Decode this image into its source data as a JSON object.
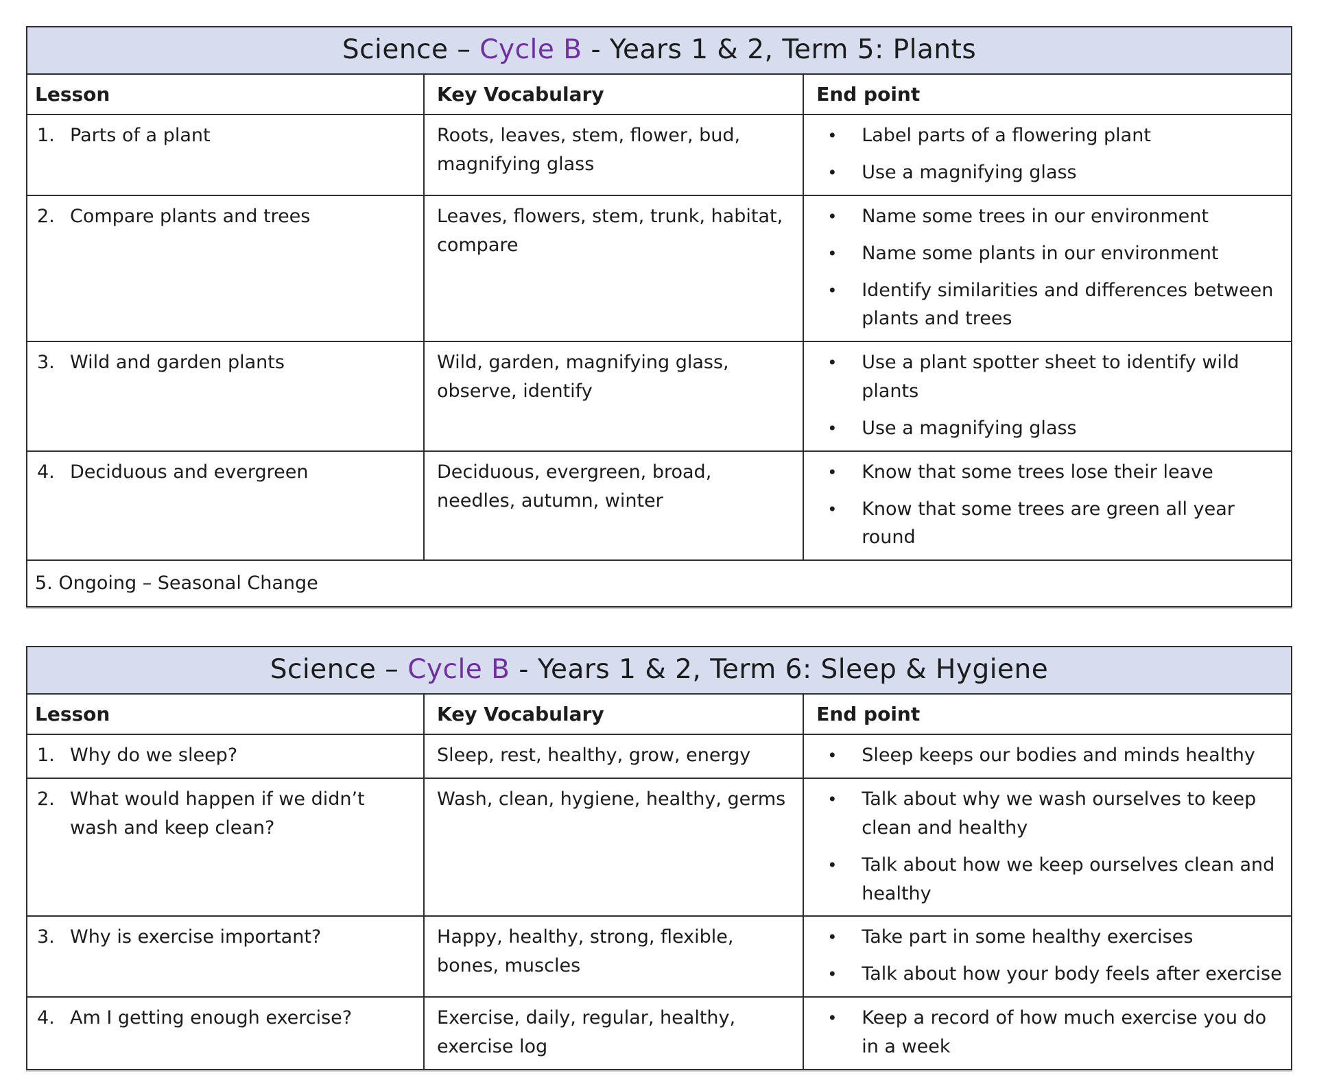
{
  "theme": {
    "title_bar_background": "#d5ddee",
    "highlight_purple": "#7030a0",
    "border_color": "#2e2e2e",
    "text_color": "#1c1c1c"
  },
  "tables": [
    {
      "title_prefix": "Science – ",
      "title_highlight": "Cycle B",
      "title_suffix": " - Years 1 & 2, Term 5: Plants",
      "columns": {
        "lesson": "Lesson",
        "vocab": "Key Vocabulary",
        "endpoint": "End point"
      },
      "rows": [
        {
          "num": "1.",
          "lesson": "Parts of a plant",
          "vocab": "Roots, leaves, stem, flower, bud, magnifying glass",
          "endpoints": [
            "Label parts of a flowering plant",
            "Use a magnifying glass"
          ]
        },
        {
          "num": "2.",
          "lesson": "Compare plants and trees",
          "vocab": "Leaves, flowers, stem, trunk, habitat, compare",
          "endpoints": [
            "Name some trees in our environment",
            "Name some plants in our environment",
            "Identify similarities and differences between plants and trees"
          ]
        },
        {
          "num": "3.",
          "lesson": "Wild and garden plants",
          "vocab": "Wild, garden, magnifying glass, observe, identify",
          "endpoints": [
            "Use a plant spotter sheet to identify wild plants",
            "Use a magnifying glass"
          ]
        },
        {
          "num": "4.",
          "lesson": "Deciduous and evergreen",
          "vocab": "Deciduous, evergreen, broad, needles, autumn, winter",
          "endpoints": [
            "Know that some trees lose their leave",
            "Know that some trees are green all year round"
          ]
        }
      ],
      "footer": "5. Ongoing – Seasonal Change"
    },
    {
      "title_prefix": "Science – ",
      "title_highlight": "Cycle B",
      "title_suffix": " - Years 1 & 2, Term 6: Sleep & Hygiene",
      "columns": {
        "lesson": "Lesson",
        "vocab": "Key Vocabulary",
        "endpoint": "End point"
      },
      "rows": [
        {
          "num": "1.",
          "lesson": "Why do we sleep?",
          "vocab": "Sleep, rest, healthy, grow, energy",
          "endpoints": [
            "Sleep keeps our bodies and minds healthy"
          ]
        },
        {
          "num": "2.",
          "lesson": "What would happen if we didn’t wash and keep clean?",
          "vocab": "Wash, clean, hygiene, healthy, germs",
          "endpoints": [
            "Talk about why we wash ourselves to keep clean and healthy",
            "Talk about how we keep ourselves clean and healthy"
          ]
        },
        {
          "num": "3.",
          "lesson": "Why is exercise important?",
          "vocab": "Happy, healthy, strong, flexible, bones, muscles",
          "endpoints": [
            "Take part in some healthy exercises",
            "Talk about how your body feels after exercise"
          ]
        },
        {
          "num": "4.",
          "lesson": "Am I getting enough exercise?",
          "vocab": "Exercise, daily, regular, healthy, exercise log",
          "endpoints": [
            "Keep a record of how much exercise you do in a week"
          ]
        }
      ]
    }
  ]
}
